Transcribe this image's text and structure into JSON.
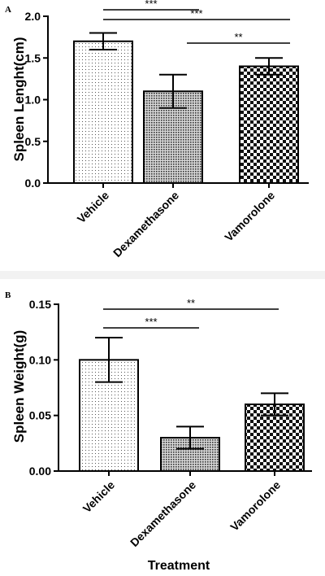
{
  "chart_data": [
    {
      "type": "bar",
      "panel_label": "A",
      "ylabel": "Spleen  Lenght(cm)",
      "xlabel": "",
      "categories": [
        "Vehicle",
        "Dexamethasone",
        "Vamorolone"
      ],
      "values": [
        1.7,
        1.1,
        1.4
      ],
      "errors": [
        0.1,
        0.2,
        0.1
      ],
      "ylim": [
        0,
        2.0
      ],
      "yticks": [
        "0.0",
        "0.5",
        "1.0",
        "1.5",
        "2.0"
      ],
      "ytick_values": [
        0,
        0.5,
        1.0,
        1.5,
        2.0
      ],
      "patterns": [
        "fine-dots",
        "medium-dots",
        "checker"
      ],
      "grid": false,
      "significance": [
        {
          "from": 0,
          "to": 1,
          "label": "***"
        },
        {
          "from": 0,
          "to": 2,
          "label": "***"
        },
        {
          "from": 1,
          "to": 2,
          "label": "**"
        }
      ]
    },
    {
      "type": "bar",
      "panel_label": "B",
      "ylabel": "Spleen  Weight(g)",
      "xlabel": "Treatment",
      "categories": [
        "Vehicle",
        "Dexamethasone",
        "Vamorolone"
      ],
      "values": [
        0.1,
        0.03,
        0.06
      ],
      "errors": [
        0.02,
        0.01,
        0.01
      ],
      "ylim": [
        0,
        0.15
      ],
      "yticks": [
        "0.00",
        "0.05",
        "0.10",
        "0.15"
      ],
      "ytick_values": [
        0,
        0.05,
        0.1,
        0.15
      ],
      "patterns": [
        "fine-dots",
        "medium-dots",
        "checker"
      ],
      "grid": false,
      "significance": [
        {
          "from": 0,
          "to": 1,
          "label": "***"
        },
        {
          "from": 0,
          "to": 2,
          "label": "**"
        }
      ]
    }
  ]
}
